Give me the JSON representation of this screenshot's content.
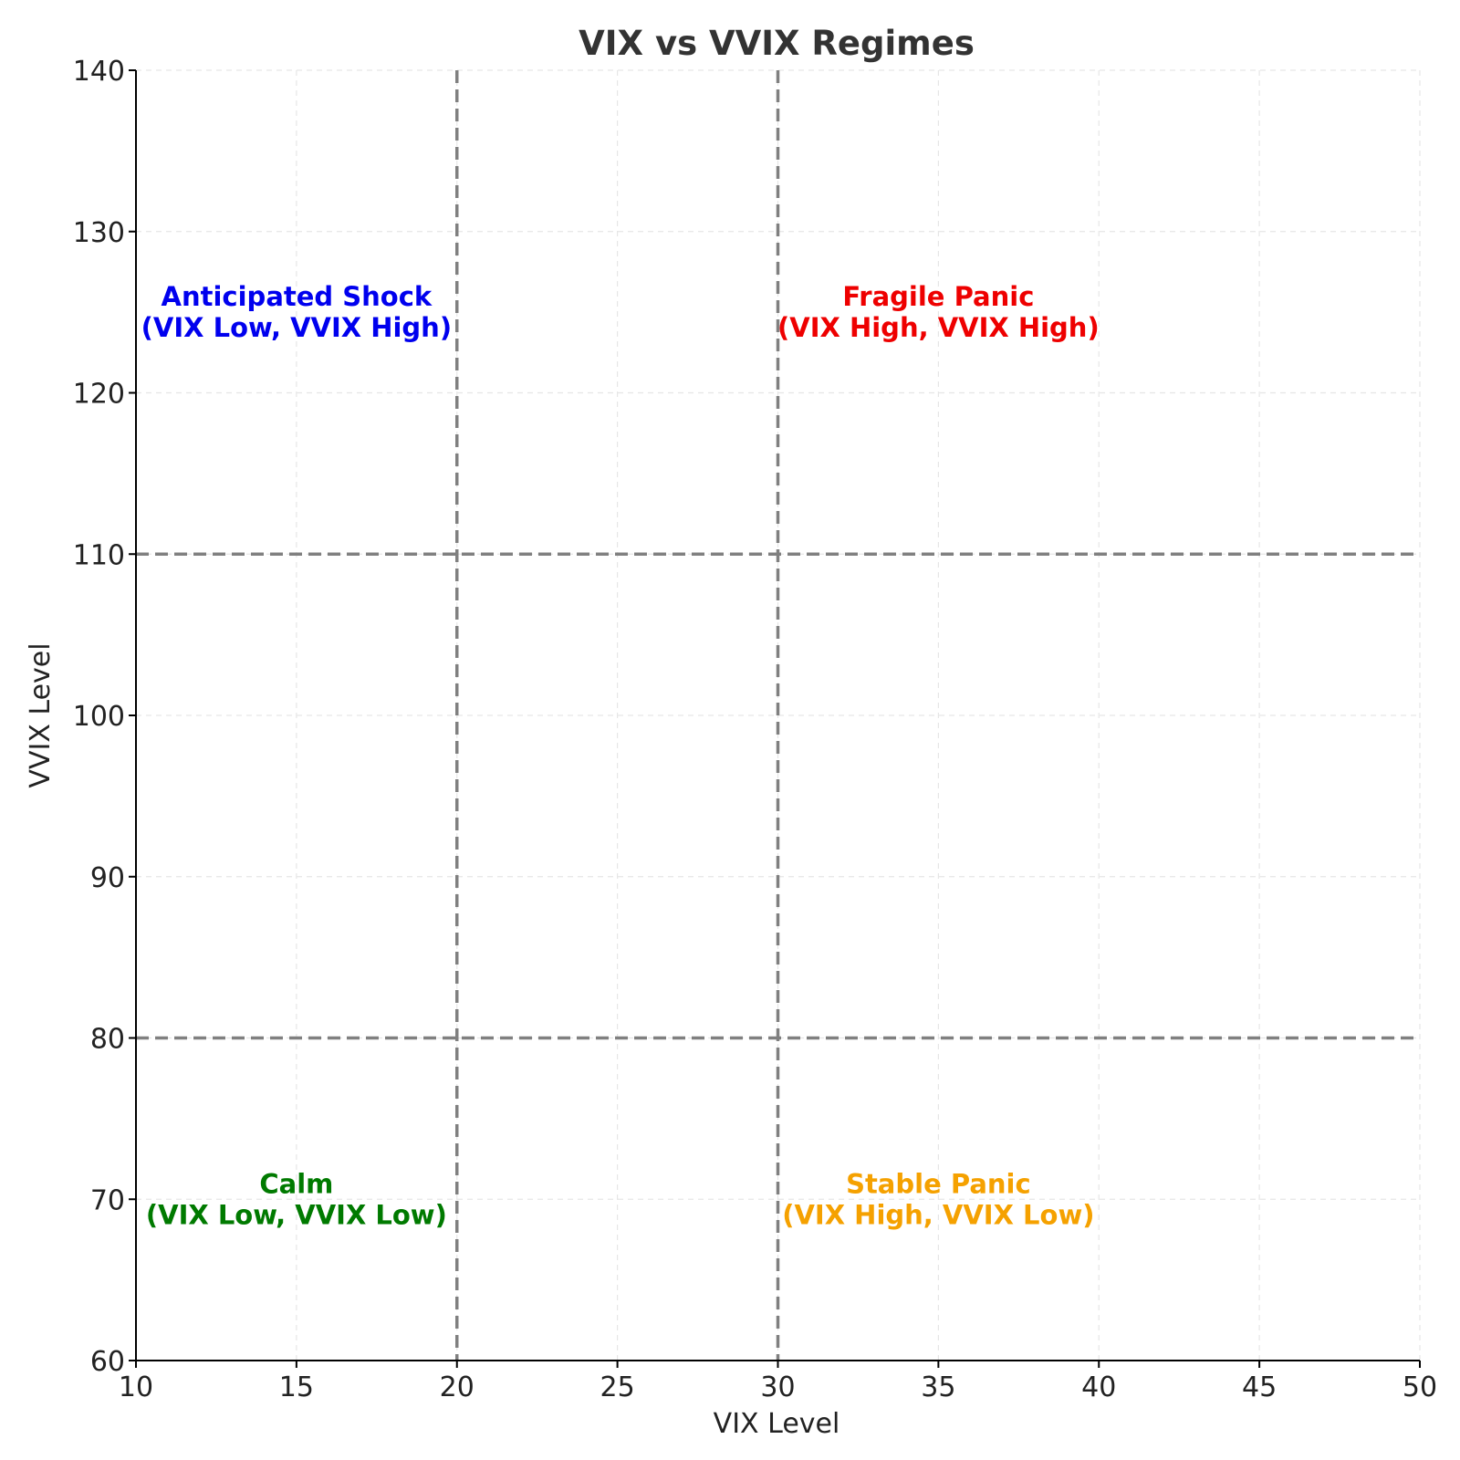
{
  "chart_data": {
    "type": "scatter",
    "title": "VIX vs VVIX Regimes",
    "xlabel": "VIX Level",
    "ylabel": "VVIX Level",
    "xlim": [
      10,
      50
    ],
    "ylim": [
      60,
      140
    ],
    "x_ticks": [
      10,
      15,
      20,
      25,
      30,
      35,
      40,
      45,
      50
    ],
    "y_ticks": [
      60,
      70,
      80,
      90,
      100,
      110,
      120,
      130,
      140
    ],
    "grid": true,
    "thresholds": {
      "vix": [
        20,
        30
      ],
      "vvix": [
        80,
        110
      ],
      "color": "#808080"
    },
    "annotations": [
      {
        "name": "Anticipated Shock",
        "lines": [
          "Anticipated Shock",
          "(VIX Low, VVIX High)"
        ],
        "x": 15,
        "y": 125,
        "color": "#0000ee"
      },
      {
        "name": "Fragile Panic",
        "lines": [
          "Fragile Panic",
          "(VIX High, VVIX High)"
        ],
        "x": 35,
        "y": 125,
        "color": "#ee0000"
      },
      {
        "name": "Calm",
        "lines": [
          "Calm",
          "(VIX Low, VVIX Low)"
        ],
        "x": 15,
        "y": 70,
        "color": "#007a00"
      },
      {
        "name": "Stable Panic",
        "lines": [
          "Stable Panic",
          "(VIX High, VVIX Low)"
        ],
        "x": 35,
        "y": 70,
        "color": "#f5a100"
      }
    ]
  }
}
